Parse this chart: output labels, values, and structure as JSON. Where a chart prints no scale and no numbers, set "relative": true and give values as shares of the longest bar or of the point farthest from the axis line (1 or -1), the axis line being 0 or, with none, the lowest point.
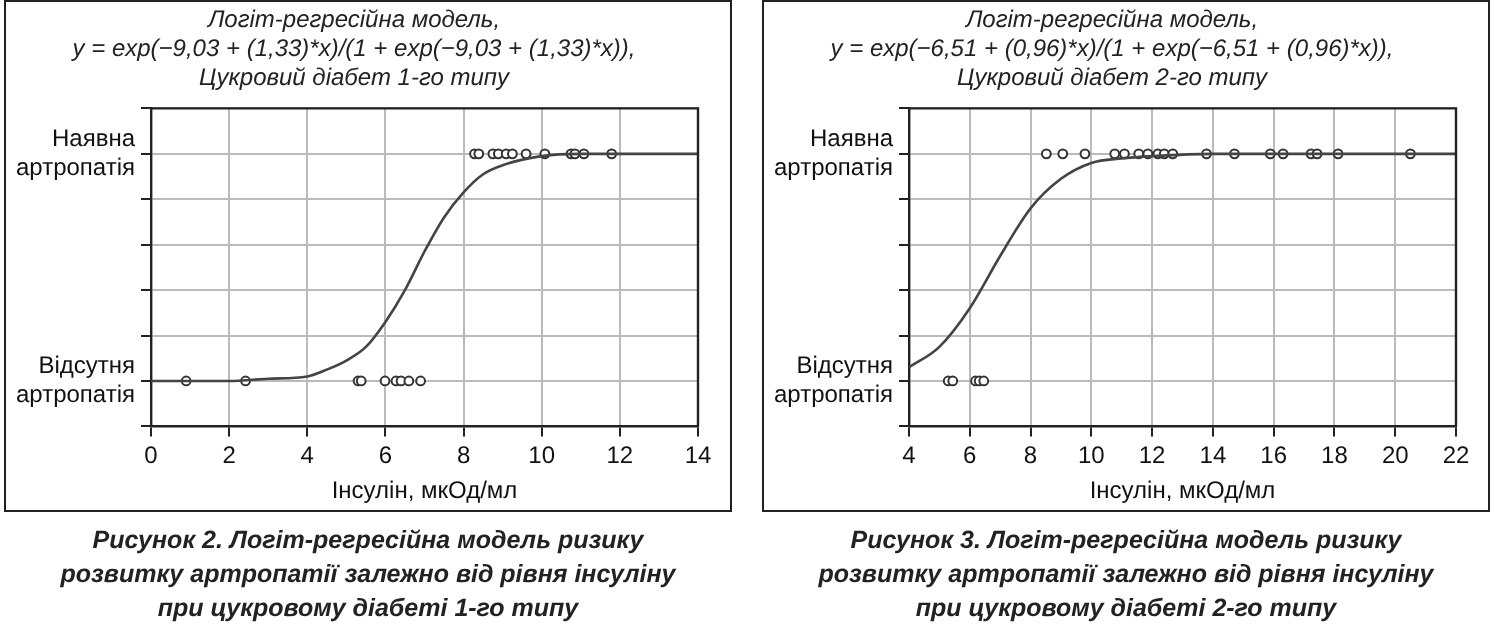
{
  "chart_data": [
    {
      "type": "scatter",
      "title": "Логіт-регресійна модель,\ny = exp(−9,03 + (1,33)*x)/(1 + exp(−9,03 + (1,33)*x)),\nЦукровий діабет 1-го типу",
      "xlabel": "Інсулін, мкОд/мл",
      "xlim": [
        0,
        14
      ],
      "xticks": [
        0,
        2,
        4,
        6,
        8,
        10,
        12,
        14
      ],
      "relative": true,
      "grid": true,
      "marker": "circle",
      "series": [
        {
          "type": "line",
          "marker": "none",
          "color": "#444444",
          "x": [
            0,
            2,
            3,
            4,
            4.5,
            5,
            5.5,
            6,
            6.5,
            7,
            7.5,
            8,
            8.5,
            9,
            10,
            11,
            12,
            14
          ],
          "values": [
            0,
            0,
            0.01,
            0.02,
            0.05,
            0.09,
            0.15,
            0.26,
            0.4,
            0.57,
            0.72,
            0.83,
            0.91,
            0.95,
            0.99,
            1,
            1,
            1
          ]
        },
        {
          "type": "scatter",
          "color": "#333333",
          "x": [
            0.9,
            2.42,
            5.3,
            5.38,
            5.99,
            6.27,
            6.4,
            6.6,
            6.9,
            8.28,
            8.39,
            8.75,
            8.89,
            9.09,
            9.25,
            9.6,
            10.08,
            10.75,
            10.85,
            11.08,
            11.79
          ],
          "values": [
            0,
            0,
            0,
            0,
            0,
            0,
            0,
            0,
            0,
            1,
            1,
            1,
            1,
            1,
            1,
            1,
            1,
            1,
            1,
            1,
            1
          ]
        }
      ],
      "annotations": [
        "Відсутня артропатія",
        "Наявна артропатія",
        "Рисунок 2. Логіт-регресійна модель ризику розвитку артропатії залежно від рівня інсуліну при цукровому діабеті 1-го типу"
      ]
    },
    {
      "type": "scatter",
      "title": "Логіт-регресійна модель,\ny = exp(−6,51 + (0,96)*x)/(1 + exp(−6,51 + (0,96)*x)),\nЦукровий діабет 2-го типу",
      "xlabel": "Інсулін, мкОд/мл",
      "xlim": [
        4,
        22
      ],
      "xticks": [
        4,
        6,
        8,
        10,
        12,
        14,
        16,
        18,
        20,
        22
      ],
      "relative": true,
      "grid": true,
      "marker": "circle",
      "series": [
        {
          "type": "line",
          "marker": "none",
          "color": "#444444",
          "x": [
            4,
            5,
            6,
            7,
            8,
            9,
            10,
            11,
            12,
            14,
            16,
            18,
            20,
            22
          ],
          "values": [
            0.06,
            0.15,
            0.32,
            0.55,
            0.76,
            0.89,
            0.96,
            0.98,
            0.99,
            1,
            1,
            1,
            1,
            1
          ]
        },
        {
          "type": "scatter",
          "color": "#333333",
          "x": [
            5.29,
            5.44,
            6.19,
            6.31,
            6.46,
            8.52,
            9.06,
            9.79,
            10.77,
            11.09,
            11.56,
            11.86,
            12.19,
            12.4,
            12.68,
            13.79,
            14.71,
            15.89,
            16.31,
            17.23,
            17.43,
            18.12,
            20.5
          ],
          "values": [
            0,
            0,
            0,
            0,
            0,
            1,
            1,
            1,
            1,
            1,
            1,
            1,
            1,
            1,
            1,
            1,
            1,
            1,
            1,
            1,
            1,
            1,
            1
          ]
        }
      ],
      "annotations": [
        "Відсутня артропатія",
        "Наявна артропатія",
        "Рисунок 3. Логіт-регресійна модель ризику розвитку артропатії залежно від рівня інсуліну при цукровому діабеті 2-го типу"
      ]
    }
  ]
}
